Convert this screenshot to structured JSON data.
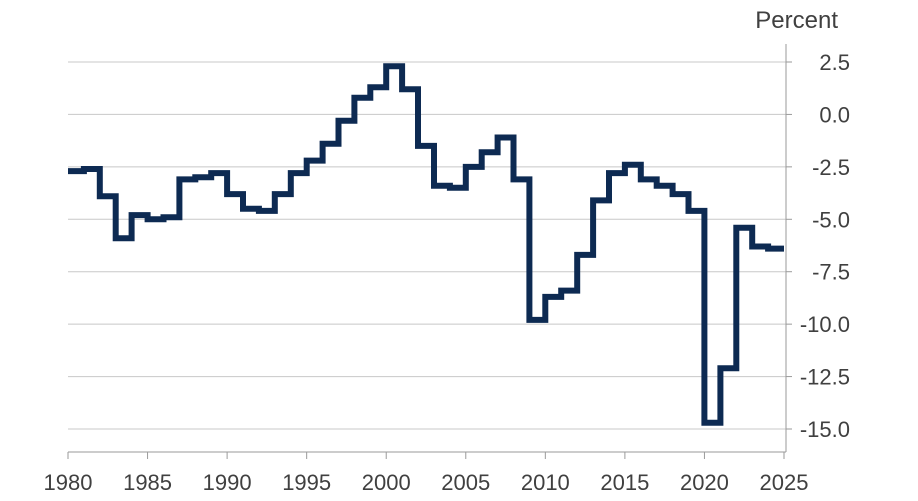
{
  "chart_data": {
    "type": "line",
    "title": "",
    "xlabel": "",
    "ylabel": "Percent",
    "xlim": [
      1980,
      2025
    ],
    "ylim": [
      -15.0,
      2.5
    ],
    "x_ticks": [
      1980,
      1985,
      1990,
      1995,
      2000,
      2005,
      2010,
      2015,
      2020,
      2025
    ],
    "y_ticks": [
      2.5,
      0.0,
      -2.5,
      -5.0,
      -7.5,
      -10.0,
      -12.5,
      -15.0
    ],
    "y_tick_labels": [
      "2.5",
      "0.0",
      "-2.5",
      "-5.0",
      "-7.5",
      "-10.0",
      "-12.5",
      "-15.0"
    ],
    "grid": "horizontal",
    "series_color": "#0d2a52",
    "series": [
      {
        "name": "",
        "x": [
          1980,
          1981,
          1982,
          1983,
          1984,
          1985,
          1986,
          1987,
          1988,
          1989,
          1990,
          1991,
          1992,
          1993,
          1994,
          1995,
          1996,
          1997,
          1998,
          1999,
          2000,
          2001,
          2002,
          2003,
          2004,
          2005,
          2006,
          2007,
          2008,
          2009,
          2010,
          2011,
          2012,
          2013,
          2014,
          2015,
          2016,
          2017,
          2018,
          2019,
          2020,
          2021,
          2022,
          2023,
          2024
        ],
        "values": [
          -2.7,
          -2.6,
          -3.9,
          -5.9,
          -4.8,
          -5.0,
          -4.9,
          -3.1,
          -3.0,
          -2.8,
          -3.8,
          -4.5,
          -4.6,
          -3.8,
          -2.8,
          -2.2,
          -1.4,
          -0.3,
          0.8,
          1.3,
          2.3,
          1.2,
          -1.5,
          -3.4,
          -3.5,
          -2.5,
          -1.8,
          -1.1,
          -3.1,
          -9.8,
          -8.7,
          -8.4,
          -6.7,
          -4.1,
          -2.8,
          -2.4,
          -3.1,
          -3.4,
          -3.8,
          -4.6,
          -14.7,
          -12.1,
          -5.4,
          -6.3,
          -6.4
        ]
      }
    ]
  }
}
